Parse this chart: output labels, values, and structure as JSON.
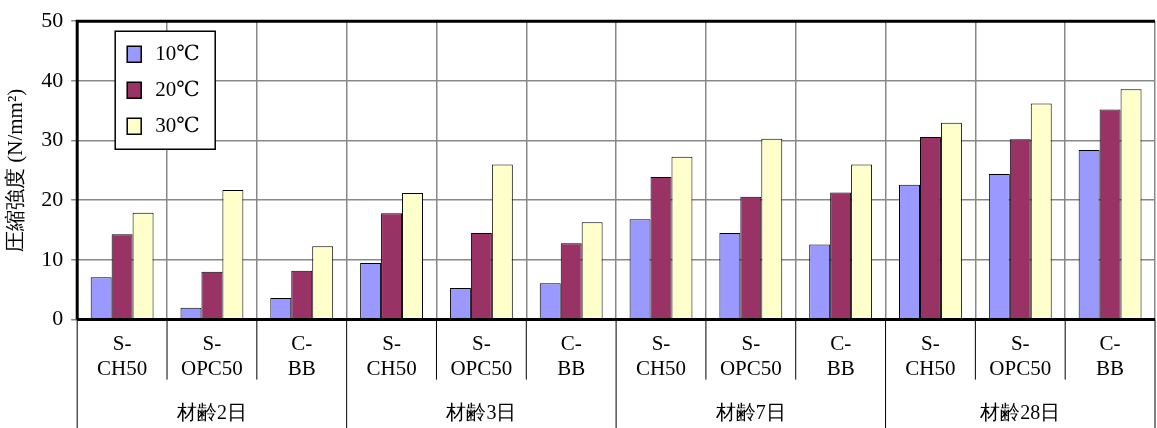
{
  "chart_data": {
    "type": "bar",
    "ylabel": "圧縮強度 (N/mm²)",
    "categories": [
      "S-CH50",
      "S-OPC50",
      "C-BB",
      "S-CH50",
      "S-OPC50",
      "C-BB",
      "S-CH50",
      "S-OPC50",
      "C-BB",
      "S-CH50",
      "S-OPC50",
      "C-BB"
    ],
    "annotations": [
      "材齢2日",
      "材齢3日",
      "材齢7日",
      "材齢28日"
    ],
    "series": [
      {
        "name": "10℃",
        "color": "#9999ff",
        "values": [
          7.1,
          2.0,
          3.6,
          9.5,
          5.3,
          6.1,
          16.8,
          14.5,
          12.6,
          22.6,
          24.4,
          28.4
        ]
      },
      {
        "name": "20℃",
        "color": "#993366",
        "values": [
          14.3,
          8.0,
          8.2,
          17.8,
          14.5,
          12.8,
          23.9,
          20.6,
          21.3,
          30.6,
          30.2,
          35.2
        ]
      },
      {
        "name": "30℃",
        "color": "#ffffcc",
        "values": [
          17.9,
          21.7,
          12.3,
          21.2,
          26.0,
          16.3,
          27.3,
          30.3,
          26.0,
          33.0,
          36.2,
          38.6
        ]
      }
    ],
    "ylim": [
      0,
      50
    ],
    "yticks": [
      0,
      10,
      20,
      30,
      40,
      50
    ],
    "grid": true,
    "legend": "top left"
  }
}
